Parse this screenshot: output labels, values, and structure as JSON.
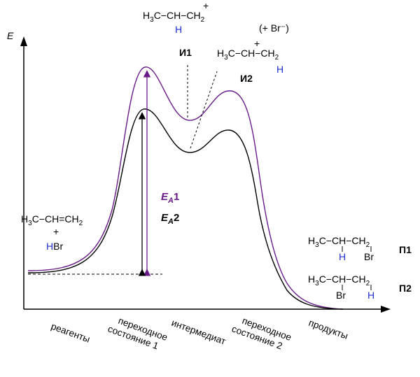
{
  "axis": {
    "ylabel": "E"
  },
  "x_stages": [
    {
      "lines": [
        "реагенты"
      ]
    },
    {
      "lines": [
        "переходное",
        "состояние 1"
      ]
    },
    {
      "lines": [
        "интермедиат"
      ]
    },
    {
      "lines": [
        "переходное",
        "состояние 2"
      ]
    },
    {
      "lines": [
        "продукты"
      ]
    }
  ],
  "reagents": {
    "alkene": {
      "a": "H",
      "a_sub": "3",
      "b": "C−CH=CH",
      "b_sub": "2"
    },
    "plus": "+",
    "hbr_h": "H",
    "hbr_br": "Br"
  },
  "intermediates": {
    "i1_label": "И1",
    "i2_label": "И2",
    "bromide": "(+ Br⁻)",
    "i1": {
      "a": "H",
      "a_sub": "3",
      "b": "C−CH−CH",
      "b_sub": "2",
      "plus": "+",
      "h": "H"
    },
    "i2": {
      "a": "H",
      "a_sub": "3",
      "b": "C−CH−CH",
      "b_sub": "2",
      "plus": "+",
      "h": "H"
    }
  },
  "products": {
    "p1_label": "П1",
    "p2_label": "П2",
    "p1": {
      "a": "H",
      "a_sub": "3",
      "b": "C−CH−CH",
      "b_sub": "2",
      "h": "H",
      "br": "Br"
    },
    "p2": {
      "a": "H",
      "a_sub": "3",
      "b": "C−CH−CH",
      "b_sub": "2",
      "h": "H",
      "br": "Br"
    }
  },
  "energies": {
    "ea1": {
      "e": "E",
      "sub": "A",
      "num": "1"
    },
    "ea2": {
      "e": "E",
      "sub": "A",
      "num": "2"
    }
  },
  "colors": {
    "path1": "#6a1b8a",
    "path2": "#000000",
    "hydrogen": "#1f2fd0"
  }
}
